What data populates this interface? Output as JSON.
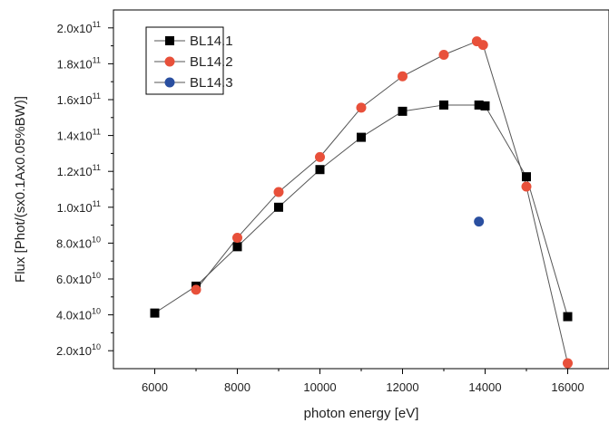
{
  "chart_data": {
    "type": "scatter",
    "xlabel": "photon energy [eV]",
    "ylabel": "Flux [Phot/(sx0.1Ax0.05%BW)]",
    "xlim": [
      5000,
      17000
    ],
    "ylim": [
      10000000000.0,
      210000000000.0
    ],
    "x_ticks": [
      6000,
      8000,
      10000,
      12000,
      14000,
      16000
    ],
    "x_tick_labels": [
      "6000",
      "8000",
      "10000",
      "12000",
      "14000",
      "16000"
    ],
    "y_ticks": [
      20000000000.0,
      40000000000.0,
      60000000000.0,
      80000000000.0,
      100000000000.0,
      120000000000.0,
      140000000000.0,
      160000000000.0,
      180000000000.0,
      200000000000.0
    ],
    "y_tick_labels": [
      {
        "mant": "2.0x10",
        "exp": "10"
      },
      {
        "mant": "4.0x10",
        "exp": "10"
      },
      {
        "mant": "6.0x10",
        "exp": "10"
      },
      {
        "mant": "8.0x10",
        "exp": "10"
      },
      {
        "mant": "1.0x10",
        "exp": "11"
      },
      {
        "mant": "1.2x10",
        "exp": "11"
      },
      {
        "mant": "1.4x10",
        "exp": "11"
      },
      {
        "mant": "1.6x10",
        "exp": "11"
      },
      {
        "mant": "1.8x10",
        "exp": "11"
      },
      {
        "mant": "2.0x10",
        "exp": "11"
      }
    ],
    "grid": false,
    "legend_position": "top-left",
    "series": [
      {
        "name": "BL14.1",
        "marker": "square",
        "color": "#000000",
        "line": true,
        "x": [
          6000,
          7000,
          8000,
          9000,
          10000,
          11000,
          12000,
          13000,
          13850,
          14000,
          15000,
          16000
        ],
        "y": [
          41000000000.0,
          56000000000.0,
          78000000000.0,
          100000000000.0,
          121000000000.0,
          139000000000.0,
          153500000000.0,
          157000000000.0,
          157000000000.0,
          156500000000.0,
          117000000000.0,
          39000000000.0
        ]
      },
      {
        "name": "BL14.2",
        "marker": "circle",
        "color": "#e8503a",
        "line": true,
        "x": [
          7000,
          8000,
          9000,
          10000,
          11000,
          12000,
          13000,
          13800,
          13950,
          15000,
          16000
        ],
        "y": [
          54000000000.0,
          83000000000.0,
          108500000000.0,
          128000000000.0,
          155500000000.0,
          173000000000.0,
          185000000000.0,
          192500000000.0,
          190500000000.0,
          111500000000.0,
          13000000000.0
        ]
      },
      {
        "name": "BL14.3",
        "marker": "circle",
        "color": "#2a4fa0",
        "line": false,
        "x": [
          13850
        ],
        "y": [
          92000000000.0
        ]
      }
    ]
  }
}
